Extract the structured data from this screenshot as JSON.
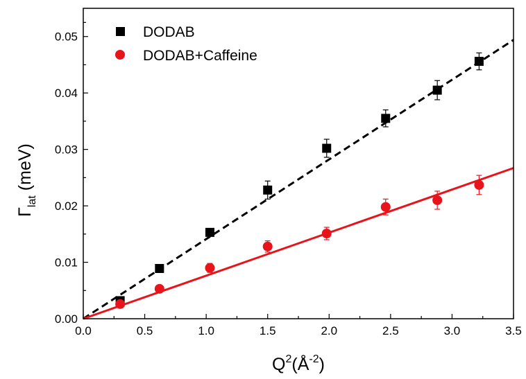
{
  "chart_data": {
    "type": "scatter",
    "xlabel": {
      "base": "Q",
      "sup": "2",
      "open": "(Å",
      "unit_sup": "-2",
      "close": ")"
    },
    "ylabel": {
      "symbol": "Γ",
      "sub": "lat",
      "unit": " (meV)"
    },
    "xlim": [
      0,
      3.5
    ],
    "ylim": [
      0,
      0.055
    ],
    "xticks": [
      0.0,
      0.5,
      1.0,
      1.5,
      2.0,
      2.5,
      3.0,
      3.5
    ],
    "xtick_labels": [
      "0.0",
      "0.5",
      "1.0",
      "1.5",
      "2.0",
      "2.5",
      "3.0",
      "3.5"
    ],
    "yticks": [
      0.0,
      0.01,
      0.02,
      0.03,
      0.04,
      0.05
    ],
    "ytick_labels": [
      "0.00",
      "0.01",
      "0.02",
      "0.03",
      "0.04",
      "0.05"
    ],
    "grid": false,
    "legend_position": "top-left",
    "series": [
      {
        "name": "DODAB",
        "marker": "square",
        "color": "#000000",
        "x": [
          0.3,
          0.62,
          1.03,
          1.5,
          1.98,
          2.46,
          2.88,
          3.22
        ],
        "y": [
          0.0032,
          0.0089,
          0.0153,
          0.0228,
          0.0302,
          0.0355,
          0.0405,
          0.0456
        ],
        "err": [
          0.0004,
          0.0005,
          0.0006,
          0.0016,
          0.0016,
          0.0015,
          0.0017,
          0.0015
        ],
        "fit": {
          "style": "dashed",
          "x": [
            0,
            3.5
          ],
          "y": [
            0,
            0.0494
          ]
        }
      },
      {
        "name": "DODAB+Caffeine",
        "marker": "circle",
        "color": "#e8141b",
        "x": [
          0.3,
          0.62,
          1.03,
          1.5,
          1.98,
          2.46,
          2.88,
          3.22
        ],
        "y": [
          0.0026,
          0.0053,
          0.009,
          0.0128,
          0.0151,
          0.0198,
          0.021,
          0.0237
        ],
        "err": [
          0.0005,
          0.0006,
          0.0008,
          0.001,
          0.0011,
          0.0014,
          0.0016,
          0.0017
        ],
        "fit": {
          "style": "solid",
          "x": [
            0,
            3.5
          ],
          "y": [
            0,
            0.0267
          ]
        }
      }
    ]
  }
}
